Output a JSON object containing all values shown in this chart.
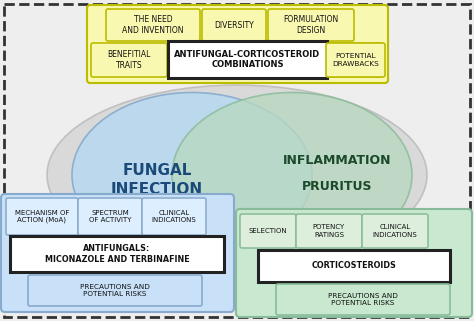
{
  "bg_color": "#eeeeee",
  "border_color": "#333333",
  "venn_left_color": "#b8d8f0",
  "venn_right_color": "#b8d8c0",
  "venn_outer_color": "#cccccc",
  "top_box_bg": "#f8f8b0",
  "top_box_border": "#bbbb00",
  "center_box_bg": "#ffffff",
  "center_box_border": "#222222",
  "left_box_bg": "#c8e0f8",
  "left_box_border": "#88aacc",
  "right_box_bg": "#c8e8d0",
  "right_box_border": "#88bb99",
  "top_labels": [
    "THE NEED\nAND INVENTION",
    "DIVERSITY",
    "FORMULATION\nDESIGN"
  ],
  "top_sub_labels": [
    "BENEFITIAL\nTRAITS",
    "ANTIFUNGAL-CORTICOSTEROID\nCOMBINATIONS",
    "POTENTIAL\nDRAWBACKS"
  ],
  "left_circle_label": "FUNGAL\nINFECTION",
  "right_circle_label1": "INFLAMMATION",
  "right_circle_label2": "PRURITUS",
  "bottom_left_boxes": [
    "MECHANISM OF\nACTION (MoA)",
    "SPECTRUM\nOF ACTIVITY",
    "CLINICAL\nINDICATIONS"
  ],
  "bottom_right_boxes": [
    "SELECTION",
    "POTENCY\nRATINGS",
    "CLINICAL\nINDICATIONS"
  ],
  "antifungal_label": "ANTIFUNGALS:\nMICONAZOLE AND TERBINAFINE",
  "corticosteroid_label": "CORTICOSTEROIDS",
  "precautions_left": "PRECAUTIONS AND\nPOTENTIAL RISKS",
  "precautions_right": "PRECAUTIONS AND\nPOTENTIAL RISKS"
}
